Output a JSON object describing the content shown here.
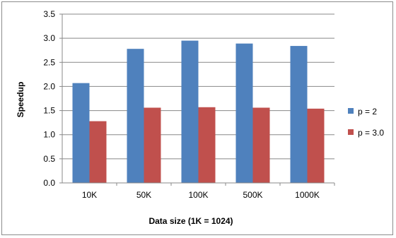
{
  "chart_data": {
    "type": "bar",
    "title": "",
    "xlabel": "Data size (1K = 1024)",
    "ylabel": "Speedup",
    "categories": [
      "10K",
      "50K",
      "100K",
      "500K",
      "1000K"
    ],
    "ylim": [
      0,
      3.5
    ],
    "yticks": [
      "0.0",
      "0.5",
      "1.0",
      "1.5",
      "2.0",
      "2.5",
      "3.0",
      "3.5"
    ],
    "grid": true,
    "legend_position": "right",
    "series": [
      {
        "name": "p = 2",
        "color": "#4f81bd",
        "values": [
          2.07,
          2.78,
          2.95,
          2.89,
          2.84
        ]
      },
      {
        "name": "p = 3.0",
        "color": "#c0504d",
        "values": [
          1.28,
          1.56,
          1.57,
          1.56,
          1.54
        ]
      }
    ]
  }
}
